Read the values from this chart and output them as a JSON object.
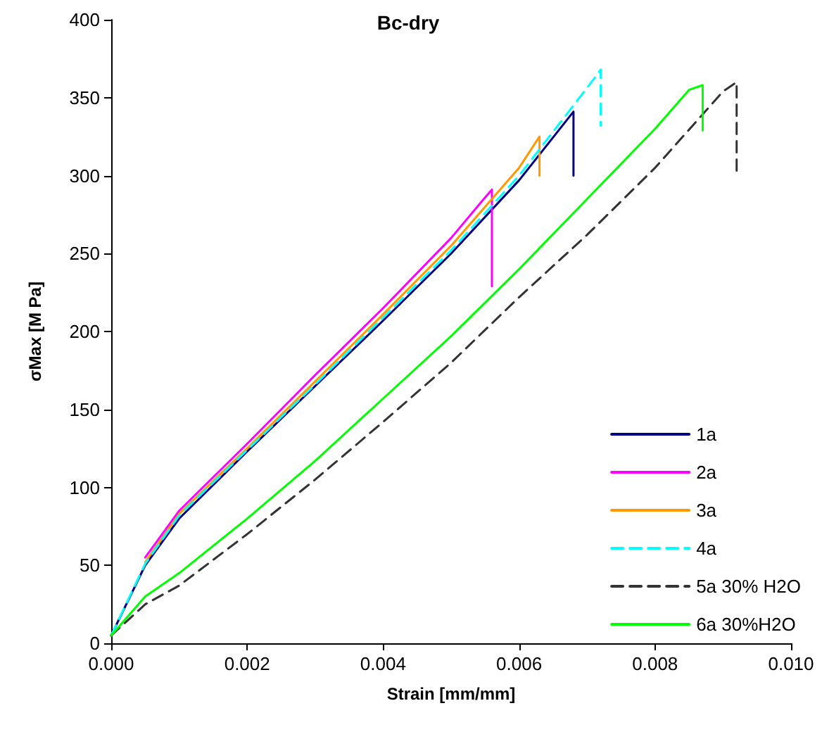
{
  "chart_data": {
    "type": "line",
    "title": "Bc-dry",
    "xlabel": "Strain [mm/mm]",
    "ylabel": "σMax [M Pa]",
    "xlim": [
      0,
      0.01
    ],
    "xticks": [
      {
        "value": 0,
        "label": "0.000"
      },
      {
        "value": 0.002,
        "label": "0.002"
      },
      {
        "value": 0.004,
        "label": "0.004"
      },
      {
        "value": 0.006,
        "label": "0.006"
      },
      {
        "value": 0.008,
        "label": "0.008"
      },
      {
        "value": 0.01,
        "label": "0.010"
      }
    ],
    "ylim": [
      0,
      400
    ],
    "yticks": [
      0,
      50,
      100,
      150,
      200,
      250,
      300,
      350,
      400
    ],
    "grid": false,
    "legend": "bottom right",
    "marker": "none",
    "series": [
      {
        "name": "1a",
        "color": "#000080",
        "line_style": "solid",
        "x": [
          0,
          0.0005,
          0.001,
          0.002,
          0.003,
          0.004,
          0.005,
          0.006,
          0.0068,
          0.0068
        ],
        "values": [
          5,
          50,
          80,
          123,
          165,
          207,
          250,
          297,
          341,
          300
        ]
      },
      {
        "name": "2a",
        "color": "#ff00ff",
        "line_style": "solid",
        "x": [
          0.0005,
          0.001,
          0.002,
          0.003,
          0.004,
          0.005,
          0.0055,
          0.0056,
          0.0056
        ],
        "values": [
          55,
          85,
          128,
          172,
          215,
          260,
          286,
          291,
          229
        ]
      },
      {
        "name": "3a",
        "color": "#ff9900",
        "line_style": "solid",
        "x": [
          0.0005,
          0.001,
          0.002,
          0.003,
          0.004,
          0.005,
          0.006,
          0.0063,
          0.0063
        ],
        "values": [
          52,
          83,
          125,
          168,
          211,
          255,
          305,
          325,
          300
        ]
      },
      {
        "name": "4a",
        "color": "#00ffff",
        "line_style": "dashed",
        "x": [
          0,
          0.0005,
          0.001,
          0.002,
          0.003,
          0.004,
          0.005,
          0.006,
          0.0068,
          0.0071,
          0.0072,
          0.0072
        ],
        "values": [
          5,
          51,
          82,
          124,
          166,
          209,
          252,
          300,
          345,
          362,
          368,
          332
        ]
      },
      {
        "name": "5a 30% H2O",
        "color": "#333333",
        "line_style": "dashed",
        "x": [
          0,
          0.0005,
          0.001,
          0.002,
          0.003,
          0.004,
          0.005,
          0.006,
          0.007,
          0.008,
          0.009,
          0.0092,
          0.0092
        ],
        "values": [
          5,
          25,
          37,
          70,
          105,
          142,
          180,
          222,
          262,
          305,
          354,
          360,
          300
        ]
      },
      {
        "name": "6a 30%H2O",
        "color": "#00ff00",
        "line_style": "solid",
        "x": [
          0,
          0.0005,
          0.001,
          0.002,
          0.003,
          0.004,
          0.005,
          0.006,
          0.007,
          0.008,
          0.0085,
          0.0087,
          0.0087
        ],
        "values": [
          5,
          30,
          45,
          80,
          117,
          157,
          197,
          240,
          285,
          330,
          355,
          358,
          329
        ]
      }
    ]
  }
}
